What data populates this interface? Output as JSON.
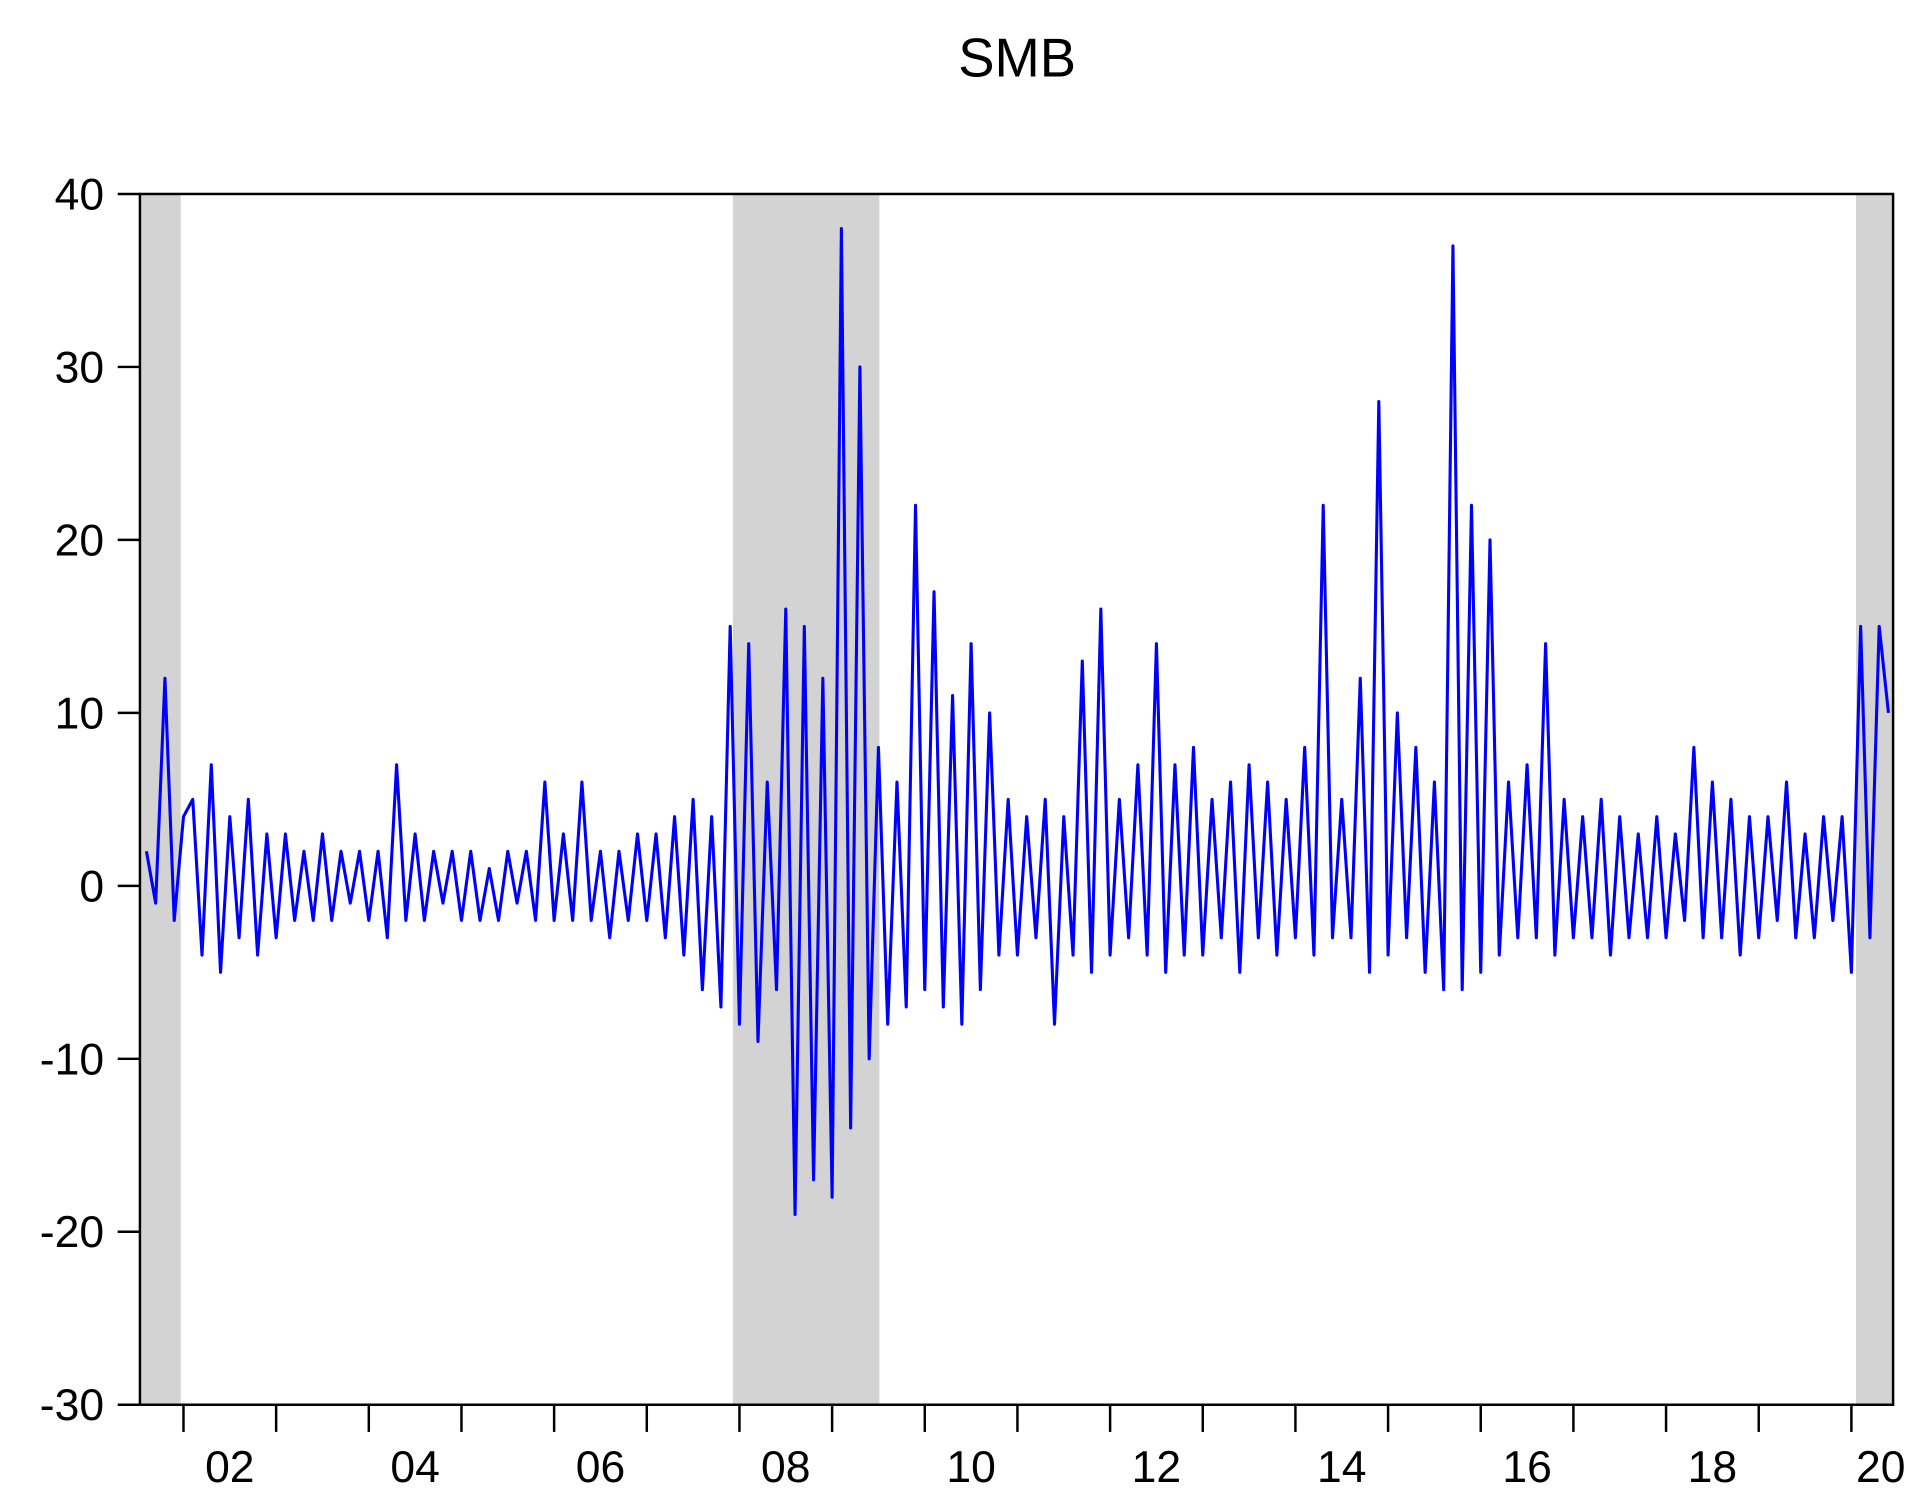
{
  "chart_data": {
    "type": "line",
    "title": "SMB",
    "color": "#0000ff",
    "xlim": [
      2001.53,
      2020.45
    ],
    "ylim": [
      -30,
      40
    ],
    "yticks": [
      -30,
      -20,
      -10,
      0,
      10,
      20,
      30,
      40
    ],
    "xticks": [
      {
        "value": 2002,
        "label": "02"
      },
      {
        "value": 2004,
        "label": "04"
      },
      {
        "value": 2006,
        "label": "06"
      },
      {
        "value": 2008,
        "label": "08"
      },
      {
        "value": 2010,
        "label": "10"
      },
      {
        "value": 2012,
        "label": "12"
      },
      {
        "value": 2014,
        "label": "14"
      },
      {
        "value": 2016,
        "label": "16"
      },
      {
        "value": 2018,
        "label": "18"
      },
      {
        "value": 2020,
        "label": "20"
      }
    ],
    "xminor_ticks": [
      2003,
      2005,
      2007,
      2009,
      2011,
      2013,
      2015,
      2017,
      2019
    ],
    "shaded_regions": [
      [
        2001.53,
        2001.97
      ],
      [
        2007.93,
        2009.51
      ],
      [
        2020.05,
        2020.45
      ]
    ],
    "x": [
      2001.6,
      2001.7,
      2001.8,
      2001.9,
      2002.0,
      2002.1,
      2002.2,
      2002.3,
      2002.4,
      2002.5,
      2002.6,
      2002.7,
      2002.8,
      2002.9,
      2003.0,
      2003.1,
      2003.2,
      2003.3,
      2003.4,
      2003.5,
      2003.6,
      2003.7,
      2003.8,
      2003.9,
      2004.0,
      2004.1,
      2004.2,
      2004.3,
      2004.4,
      2004.5,
      2004.6,
      2004.7,
      2004.8,
      2004.9,
      2005.0,
      2005.1,
      2005.2,
      2005.3,
      2005.4,
      2005.5,
      2005.6,
      2005.7,
      2005.8,
      2005.9,
      2006.0,
      2006.1,
      2006.2,
      2006.3,
      2006.4,
      2006.5,
      2006.6,
      2006.7,
      2006.8,
      2006.9,
      2007.0,
      2007.1,
      2007.2,
      2007.3,
      2007.4,
      2007.5,
      2007.6,
      2007.7,
      2007.8,
      2007.9,
      2008.0,
      2008.1,
      2008.2,
      2008.3,
      2008.4,
      2008.5,
      2008.6,
      2008.7,
      2008.8,
      2008.9,
      2009.0,
      2009.1,
      2009.2,
      2009.3,
      2009.4,
      2009.5,
      2009.6,
      2009.7,
      2009.8,
      2009.9,
      2010.0,
      2010.1,
      2010.2,
      2010.3,
      2010.4,
      2010.5,
      2010.6,
      2010.7,
      2010.8,
      2010.9,
      2011.0,
      2011.1,
      2011.2,
      2011.3,
      2011.4,
      2011.5,
      2011.6,
      2011.7,
      2011.8,
      2011.9,
      2012.0,
      2012.1,
      2012.2,
      2012.3,
      2012.4,
      2012.5,
      2012.6,
      2012.7,
      2012.8,
      2012.9,
      2013.0,
      2013.1,
      2013.2,
      2013.3,
      2013.4,
      2013.5,
      2013.6,
      2013.7,
      2013.8,
      2013.9,
      2014.0,
      2014.1,
      2014.2,
      2014.3,
      2014.4,
      2014.5,
      2014.6,
      2014.7,
      2014.8,
      2014.9,
      2015.0,
      2015.1,
      2015.2,
      2015.3,
      2015.4,
      2015.5,
      2015.6,
      2015.7,
      2015.8,
      2015.9,
      2016.0,
      2016.1,
      2016.2,
      2016.3,
      2016.4,
      2016.5,
      2016.6,
      2016.7,
      2016.8,
      2016.9,
      2017.0,
      2017.1,
      2017.2,
      2017.3,
      2017.4,
      2017.5,
      2017.6,
      2017.7,
      2017.8,
      2017.9,
      2018.0,
      2018.1,
      2018.2,
      2018.3,
      2018.4,
      2018.5,
      2018.6,
      2018.7,
      2018.8,
      2018.9,
      2019.0,
      2019.1,
      2019.2,
      2019.3,
      2019.4,
      2019.5,
      2019.6,
      2019.7,
      2019.8,
      2019.9,
      2020.0,
      2020.1,
      2020.2,
      2020.3,
      2020.4
    ],
    "values": [
      2,
      -1,
      12,
      -2,
      4,
      5,
      -4,
      7,
      -5,
      4,
      -3,
      5,
      -4,
      3,
      -3,
      3,
      -2,
      2,
      -2,
      3,
      -2,
      2,
      -1,
      2,
      -2,
      2,
      -3,
      7,
      -2,
      3,
      -2,
      2,
      -1,
      2,
      -2,
      2,
      -2,
      1,
      -2,
      2,
      -1,
      2,
      -2,
      6,
      -2,
      3,
      -2,
      6,
      -2,
      2,
      -3,
      2,
      -2,
      3,
      -2,
      3,
      -3,
      4,
      -4,
      5,
      -6,
      4,
      -7,
      15,
      -8,
      14,
      -9,
      6,
      -6,
      16,
      -19,
      15,
      -17,
      12,
      -18,
      38,
      -14,
      30,
      -10,
      8,
      -8,
      6,
      -7,
      22,
      -6,
      17,
      -7,
      11,
      -8,
      14,
      -6,
      10,
      -4,
      5,
      -4,
      4,
      -3,
      5,
      -8,
      4,
      -4,
      13,
      -5,
      16,
      -4,
      5,
      -3,
      7,
      -4,
      14,
      -5,
      7,
      -4,
      8,
      -4,
      5,
      -3,
      6,
      -5,
      7,
      -3,
      6,
      -4,
      5,
      -3,
      8,
      -4,
      22,
      -3,
      5,
      -3,
      12,
      -5,
      28,
      -4,
      10,
      -3,
      8,
      -5,
      6,
      -6,
      37,
      -6,
      22,
      -5,
      20,
      -4,
      6,
      -3,
      7,
      -3,
      14,
      -4,
      5,
      -3,
      4,
      -3,
      5,
      -4,
      4,
      -3,
      3,
      -3,
      4,
      -3,
      3,
      -2,
      8,
      -3,
      6,
      -3,
      5,
      -4,
      4,
      -3,
      4,
      -2,
      6,
      -3,
      3,
      -3,
      4,
      -2,
      4,
      -5,
      15,
      -3,
      15,
      10
    ]
  }
}
